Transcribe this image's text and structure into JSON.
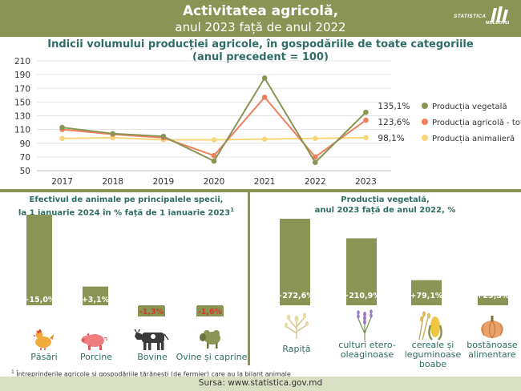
{
  "header": {
    "title_line1": "Activitatea agricolă,",
    "title_line2": "anul 2023 față de anul 2022",
    "logo_line1": "STATISTICA",
    "logo_line2": "MOLDOVEI"
  },
  "colors": {
    "header_bg": "#8a9455",
    "vegetal": "#8a9455",
    "total": "#f07f5c",
    "animal": "#f7d67a",
    "bar": "#8a9455",
    "bar_neg_label": "#d23a2a",
    "title_teal": "#2f6d64"
  },
  "chart_data": [
    {
      "type": "line",
      "title": "Indicii volumului producției agricole, în gospodăriile de toate categoriile",
      "subtitle": "(anul precedent = 100)",
      "x": [
        "2017",
        "2018",
        "2019",
        "2020",
        "2021",
        "2022",
        "2023"
      ],
      "ylim": [
        50,
        210
      ],
      "yticks": [
        50,
        70,
        90,
        110,
        130,
        150,
        170,
        190,
        210
      ],
      "grid": true,
      "legend": "right",
      "series": [
        {
          "name": "Producția vegetală",
          "color": "#8a9455",
          "values": [
            113,
            104,
            100,
            64,
            185,
            62,
            135.1
          ],
          "end_label": "135,1%"
        },
        {
          "name": "Producția agricolă - total",
          "color": "#f07f5c",
          "values": [
            110,
            103,
            98,
            72,
            157,
            70,
            123.6
          ],
          "end_label": "123,6%"
        },
        {
          "name": "Producția animalieră",
          "color": "#f7d67a",
          "values": [
            97,
            98,
            95,
            95,
            96,
            97,
            98.1
          ],
          "end_label": "98,1%"
        }
      ]
    },
    {
      "type": "bar",
      "title_line1": "Efectivul de animale pe principalele specii,",
      "title_line2": "la 1 ianuarie 2024 în % față de 1 ianuarie 2023",
      "title_sup": "1",
      "categories": [
        "Păsări",
        "Porcine",
        "Bovine",
        "Ovine și caprine"
      ],
      "values": [
        15.0,
        3.1,
        -1.3,
        -1.6
      ],
      "labels": [
        "+15,0%",
        "+3,1%",
        "-1,3%",
        "-1,6%"
      ]
    },
    {
      "type": "bar",
      "title_line1": "Producția vegetală,",
      "title_line2": "anul 2023 față de anul 2022, %",
      "categories": [
        "Rapiță",
        "culturi etero-oleaginoase",
        "cereale și leguminoase boabe",
        "bostănoase alimentare"
      ],
      "values": [
        272.6,
        210.9,
        79.1,
        29.3
      ],
      "labels": [
        "+272,6%",
        "+210,9%",
        "+79,1%",
        "+29,3%"
      ]
    }
  ],
  "left_categories": {
    "c0": "Păsări",
    "c1": "Porcine",
    "c2": "Bovine",
    "c3": "Ovine și caprine"
  },
  "right_categories": {
    "c0_line1": "Rapiță",
    "c1_line1": "culturi etero-",
    "c1_line2": "oleaginoase",
    "c2_line1": "cereale și",
    "c2_line2": "leguminoase",
    "c2_line3": "boabe",
    "c3_line1": "bostănoase",
    "c3_line2": "alimentare"
  },
  "icons": [
    "chicken-icon",
    "pig-icon",
    "cow-icon",
    "sheep-icon",
    "rapeseed-icon",
    "lavender-icon",
    "corn-wheat-icon",
    "pumpkin-icon"
  ],
  "footnote": {
    "sup": "1",
    "text": "Întreprinderile agricole și gospodăriile țărănești (de fermier) care au la bilanț animale"
  },
  "source": "Sursa: www.statistica.gov.md"
}
